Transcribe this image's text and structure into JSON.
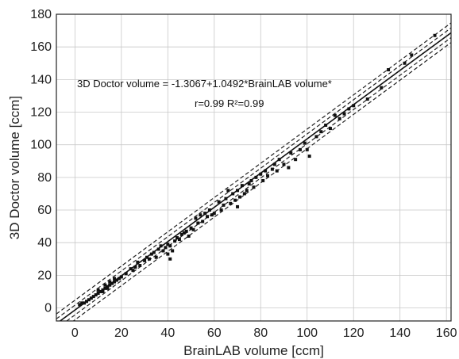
{
  "chart_data": {
    "type": "scatter",
    "xlabel": "BrainLAB volume [ccm]",
    "ylabel": "3D Doctor volume [ccm]",
    "xlim": [
      -8,
      162
    ],
    "ylim": [
      -8,
      180
    ],
    "x_ticks": [
      0,
      20,
      40,
      60,
      80,
      100,
      120,
      140,
      160
    ],
    "y_ticks": [
      0,
      20,
      40,
      60,
      80,
      100,
      120,
      140,
      160,
      180
    ],
    "grid": true,
    "annotations": {
      "equation": "3D Doctor volume = -1.3067+1.0492*BrainLAB volume*",
      "stats": "r=0.99 R²=0.99"
    },
    "regression": {
      "intercept": -1.3067,
      "slope": 1.0492
    },
    "bands": [
      {
        "name": "",
        "style": "dashed",
        "offset": 6
      },
      {
        "name": "",
        "style": "dashed",
        "offset": 3
      },
      {
        "name": "",
        "style": "dashed",
        "offset": -3
      },
      {
        "name": "",
        "style": "dashed",
        "offset": -6
      }
    ],
    "points": [
      [
        2,
        2
      ],
      [
        3,
        3
      ],
      [
        4,
        3
      ],
      [
        5,
        4
      ],
      [
        6,
        5
      ],
      [
        7,
        6
      ],
      [
        8,
        7
      ],
      [
        9,
        8
      ],
      [
        10,
        9
      ],
      [
        11,
        10
      ],
      [
        12,
        11
      ],
      [
        13,
        12
      ],
      [
        14,
        13
      ],
      [
        15,
        14
      ],
      [
        16,
        15
      ],
      [
        17,
        16
      ],
      [
        18,
        17
      ],
      [
        19,
        18
      ],
      [
        20,
        19
      ],
      [
        13,
        14
      ],
      [
        15,
        16
      ],
      [
        17,
        18
      ],
      [
        12,
        10
      ],
      [
        14,
        12
      ],
      [
        10,
        11
      ],
      [
        22,
        21
      ],
      [
        24,
        24
      ],
      [
        25,
        23
      ],
      [
        26,
        25
      ],
      [
        27,
        28
      ],
      [
        28,
        26
      ],
      [
        30,
        29
      ],
      [
        31,
        31
      ],
      [
        32,
        30
      ],
      [
        33,
        33
      ],
      [
        34,
        34
      ],
      [
        35,
        31
      ],
      [
        36,
        36
      ],
      [
        37,
        38
      ],
      [
        38,
        35
      ],
      [
        39,
        37
      ],
      [
        40,
        39
      ],
      [
        41,
        38
      ],
      [
        42,
        35
      ],
      [
        41,
        30
      ],
      [
        40,
        33
      ],
      [
        43,
        41
      ],
      [
        44,
        43
      ],
      [
        45,
        42
      ],
      [
        46,
        45
      ],
      [
        47,
        46
      ],
      [
        48,
        47
      ],
      [
        49,
        44
      ],
      [
        50,
        49
      ],
      [
        51,
        48
      ],
      [
        52,
        55
      ],
      [
        53,
        52
      ],
      [
        54,
        57
      ],
      [
        55,
        53
      ],
      [
        56,
        58
      ],
      [
        57,
        56
      ],
      [
        58,
        60
      ],
      [
        59,
        57
      ],
      [
        60,
        58
      ],
      [
        62,
        65
      ],
      [
        63,
        60
      ],
      [
        64,
        63
      ],
      [
        65,
        67
      ],
      [
        66,
        72
      ],
      [
        67,
        64
      ],
      [
        68,
        70
      ],
      [
        69,
        66
      ],
      [
        70,
        72
      ],
      [
        70,
        62
      ],
      [
        71,
        68
      ],
      [
        72,
        75
      ],
      [
        73,
        70
      ],
      [
        74,
        72
      ],
      [
        75,
        76
      ],
      [
        76,
        78
      ],
      [
        77,
        74
      ],
      [
        78,
        80
      ],
      [
        80,
        82
      ],
      [
        81,
        78
      ],
      [
        82,
        84
      ],
      [
        83,
        81
      ],
      [
        85,
        85
      ],
      [
        86,
        88
      ],
      [
        87,
        84
      ],
      [
        88,
        91
      ],
      [
        90,
        88
      ],
      [
        92,
        86
      ],
      [
        93,
        95
      ],
      [
        95,
        91
      ],
      [
        97,
        97
      ],
      [
        99,
        101
      ],
      [
        100,
        97
      ],
      [
        101,
        93
      ],
      [
        104,
        105
      ],
      [
        106,
        108
      ],
      [
        108,
        112
      ],
      [
        110,
        110
      ],
      [
        112,
        118
      ],
      [
        114,
        116
      ],
      [
        116,
        119
      ],
      [
        118,
        122
      ],
      [
        120,
        124
      ],
      [
        126,
        128
      ],
      [
        132,
        135
      ],
      [
        135,
        146
      ],
      [
        142,
        150
      ],
      [
        145,
        155
      ],
      [
        155,
        167
      ]
    ]
  }
}
